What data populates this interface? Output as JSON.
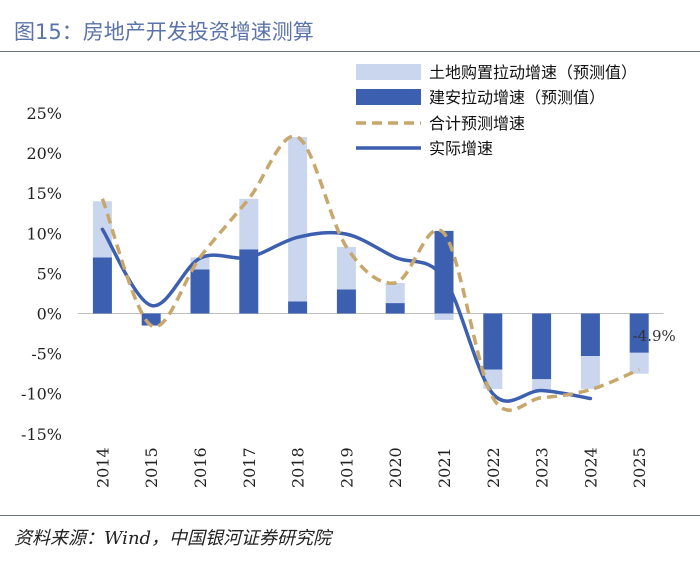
{
  "title": "图15：房地产开发投资增速测算",
  "source": "资料来源：Wind，中国银河证券研究院",
  "chart_data": {
    "type": "bar",
    "categories": [
      "2014",
      "2015",
      "2016",
      "2017",
      "2018",
      "2019",
      "2020",
      "2021",
      "2022",
      "2023",
      "2024",
      "2025"
    ],
    "ylim": [
      -15,
      25
    ],
    "yticks": [
      -15,
      -10,
      -5,
      0,
      5,
      10,
      15,
      20,
      25
    ],
    "ytick_labels": [
      "-15%",
      "-10%",
      "-5%",
      "0%",
      "5%",
      "10%",
      "15%",
      "20%",
      "25%"
    ],
    "series": [
      {
        "name": "土地购置拉动增速（预测值）",
        "kind": "bar",
        "color": "#c9d6ee",
        "values": [
          7.0,
          0.0,
          1.5,
          6.3,
          20.5,
          5.3,
          2.5,
          -0.8,
          -2.4,
          -1.3,
          -4.1,
          -2.6
        ]
      },
      {
        "name": "建安拉动增速（预测值）",
        "kind": "bar",
        "color": "#3c5fb0",
        "values": [
          7.0,
          -1.5,
          5.5,
          8.0,
          1.5,
          3.0,
          1.3,
          10.3,
          -7.0,
          -8.2,
          -5.3,
          -4.9
        ]
      },
      {
        "name": "合计预测增速",
        "kind": "line",
        "style": "dashed",
        "color": "#c7a76c",
        "values": [
          14.3,
          -1.5,
          7.0,
          14.3,
          22.0,
          8.3,
          3.8,
          10.0,
          -10.5,
          -10.5,
          -9.5,
          -7.0
        ]
      },
      {
        "name": "实际增速",
        "kind": "line",
        "style": "solid",
        "color": "#3c5fb0",
        "values": [
          10.5,
          1.0,
          6.9,
          7.0,
          9.5,
          9.9,
          7.0,
          4.4,
          -10.0,
          -9.6,
          -10.6,
          null
        ]
      }
    ],
    "annotations": [
      {
        "category": "2025",
        "text": "-4.9%"
      }
    ]
  }
}
